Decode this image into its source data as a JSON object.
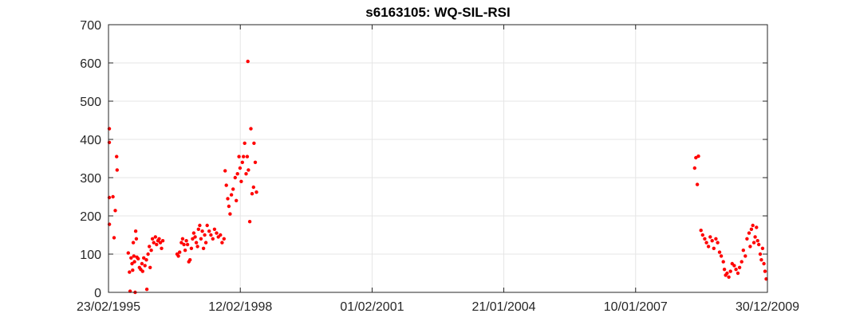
{
  "chart_data": {
    "type": "scatter",
    "title": "s6163105: WQ-SIL-RSI",
    "xlabel": "",
    "ylabel": "",
    "marker_color": "#ff0000",
    "grid": true,
    "x_axis_type": "date",
    "xlim": [
      "1995-02-23",
      "2009-12-30"
    ],
    "ylim": [
      0,
      700
    ],
    "x_ticks": [
      {
        "date": "1995-02-23",
        "label": "23/02/1995"
      },
      {
        "date": "1998-02-12",
        "label": "12/02/1998"
      },
      {
        "date": "2001-02-01",
        "label": "01/02/2001"
      },
      {
        "date": "2004-01-21",
        "label": "21/01/2004"
      },
      {
        "date": "2007-01-10",
        "label": "10/01/2007"
      },
      {
        "date": "2009-12-30",
        "label": "30/12/2009"
      }
    ],
    "y_ticks": [
      0,
      100,
      200,
      300,
      400,
      500,
      600,
      700
    ],
    "points": [
      {
        "x": "1995-02-25",
        "y": 428
      },
      {
        "x": "1995-02-27",
        "y": 392
      },
      {
        "x": "1995-03-01",
        "y": 248
      },
      {
        "x": "1995-03-02",
        "y": 178
      },
      {
        "x": "1995-04-01",
        "y": 250
      },
      {
        "x": "1995-04-10",
        "y": 143
      },
      {
        "x": "1995-04-20",
        "y": 214
      },
      {
        "x": "1995-05-01",
        "y": 355
      },
      {
        "x": "1995-05-05",
        "y": 320
      },
      {
        "x": "1995-08-05",
        "y": 103
      },
      {
        "x": "1995-08-15",
        "y": 53
      },
      {
        "x": "1995-08-20",
        "y": 3
      },
      {
        "x": "1995-08-28",
        "y": 90
      },
      {
        "x": "1995-09-05",
        "y": 75
      },
      {
        "x": "1995-09-10",
        "y": 58
      },
      {
        "x": "1995-09-15",
        "y": 130
      },
      {
        "x": "1995-09-20",
        "y": 95
      },
      {
        "x": "1995-09-25",
        "y": 80
      },
      {
        "x": "1995-09-30",
        "y": 0
      },
      {
        "x": "1995-10-05",
        "y": 160
      },
      {
        "x": "1995-10-10",
        "y": 140
      },
      {
        "x": "1995-10-15",
        "y": 92
      },
      {
        "x": "1995-10-25",
        "y": 88
      },
      {
        "x": "1995-11-05",
        "y": 65
      },
      {
        "x": "1995-11-15",
        "y": 60
      },
      {
        "x": "1995-11-25",
        "y": 75
      },
      {
        "x": "1995-12-01",
        "y": 55
      },
      {
        "x": "1995-12-10",
        "y": 90
      },
      {
        "x": "1995-12-20",
        "y": 70
      },
      {
        "x": "1996-01-01",
        "y": 85
      },
      {
        "x": "1996-01-05",
        "y": 8
      },
      {
        "x": "1996-01-15",
        "y": 100
      },
      {
        "x": "1996-01-25",
        "y": 120
      },
      {
        "x": "1996-02-01",
        "y": 65
      },
      {
        "x": "1996-02-10",
        "y": 110
      },
      {
        "x": "1996-02-20",
        "y": 140
      },
      {
        "x": "1996-03-01",
        "y": 130
      },
      {
        "x": "1996-03-15",
        "y": 145
      },
      {
        "x": "1996-03-25",
        "y": 125
      },
      {
        "x": "1996-04-05",
        "y": 135
      },
      {
        "x": "1996-04-15",
        "y": 140
      },
      {
        "x": "1996-04-25",
        "y": 130
      },
      {
        "x": "1996-05-05",
        "y": 115
      },
      {
        "x": "1996-05-15",
        "y": 135
      },
      {
        "x": "1996-09-10",
        "y": 100
      },
      {
        "x": "1996-09-20",
        "y": 95
      },
      {
        "x": "1996-10-01",
        "y": 105
      },
      {
        "x": "1996-10-15",
        "y": 130
      },
      {
        "x": "1996-10-25",
        "y": 140
      },
      {
        "x": "1996-11-05",
        "y": 125
      },
      {
        "x": "1996-11-15",
        "y": 110
      },
      {
        "x": "1996-11-25",
        "y": 135
      },
      {
        "x": "1996-12-05",
        "y": 125
      },
      {
        "x": "1996-12-15",
        "y": 80
      },
      {
        "x": "1996-12-25",
        "y": 85
      },
      {
        "x": "1997-01-05",
        "y": 115
      },
      {
        "x": "1997-01-15",
        "y": 140
      },
      {
        "x": "1997-01-25",
        "y": 155
      },
      {
        "x": "1997-02-05",
        "y": 145
      },
      {
        "x": "1997-02-15",
        "y": 130
      },
      {
        "x": "1997-02-25",
        "y": 120
      },
      {
        "x": "1997-03-05",
        "y": 165
      },
      {
        "x": "1997-03-15",
        "y": 175
      },
      {
        "x": "1997-03-25",
        "y": 140
      },
      {
        "x": "1997-04-05",
        "y": 160
      },
      {
        "x": "1997-04-15",
        "y": 115
      },
      {
        "x": "1997-04-25",
        "y": 150
      },
      {
        "x": "1997-05-05",
        "y": 130
      },
      {
        "x": "1997-05-15",
        "y": 175
      },
      {
        "x": "1997-06-01",
        "y": 160
      },
      {
        "x": "1997-06-15",
        "y": 150
      },
      {
        "x": "1997-07-01",
        "y": 140
      },
      {
        "x": "1997-07-15",
        "y": 165
      },
      {
        "x": "1997-08-01",
        "y": 155
      },
      {
        "x": "1997-08-15",
        "y": 145
      },
      {
        "x": "1997-09-01",
        "y": 150
      },
      {
        "x": "1997-09-15",
        "y": 130
      },
      {
        "x": "1997-10-01",
        "y": 140
      },
      {
        "x": "1997-10-10",
        "y": 318
      },
      {
        "x": "1997-10-20",
        "y": 280
      },
      {
        "x": "1997-11-01",
        "y": 245
      },
      {
        "x": "1997-11-10",
        "y": 225
      },
      {
        "x": "1997-11-20",
        "y": 205
      },
      {
        "x": "1997-12-01",
        "y": 255
      },
      {
        "x": "1997-12-15",
        "y": 270
      },
      {
        "x": "1998-01-01",
        "y": 300
      },
      {
        "x": "1998-01-10",
        "y": 240
      },
      {
        "x": "1998-01-20",
        "y": 310
      },
      {
        "x": "1998-02-01",
        "y": 355
      },
      {
        "x": "1998-02-10",
        "y": 325
      },
      {
        "x": "1998-02-20",
        "y": 290
      },
      {
        "x": "1998-03-01",
        "y": 340
      },
      {
        "x": "1998-03-10",
        "y": 355
      },
      {
        "x": "1998-03-20",
        "y": 390
      },
      {
        "x": "1998-04-01",
        "y": 310
      },
      {
        "x": "1998-04-10",
        "y": 355
      },
      {
        "x": "1998-04-15",
        "y": 604
      },
      {
        "x": "1998-04-20",
        "y": 320
      },
      {
        "x": "1998-05-01",
        "y": 185
      },
      {
        "x": "1998-05-10",
        "y": 428
      },
      {
        "x": "1998-05-20",
        "y": 258
      },
      {
        "x": "1998-06-01",
        "y": 275
      },
      {
        "x": "1998-06-05",
        "y": 390
      },
      {
        "x": "1998-06-15",
        "y": 340
      },
      {
        "x": "1998-06-25",
        "y": 262
      },
      {
        "x": "2008-05-10",
        "y": 325
      },
      {
        "x": "2008-05-20",
        "y": 352
      },
      {
        "x": "2008-06-01",
        "y": 282
      },
      {
        "x": "2008-06-10",
        "y": 356
      },
      {
        "x": "2008-07-01",
        "y": 162
      },
      {
        "x": "2008-07-15",
        "y": 150
      },
      {
        "x": "2008-08-01",
        "y": 140
      },
      {
        "x": "2008-08-15",
        "y": 130
      },
      {
        "x": "2008-09-01",
        "y": 120
      },
      {
        "x": "2008-09-15",
        "y": 145
      },
      {
        "x": "2008-10-01",
        "y": 135
      },
      {
        "x": "2008-10-15",
        "y": 115
      },
      {
        "x": "2008-11-01",
        "y": 140
      },
      {
        "x": "2008-11-15",
        "y": 130
      },
      {
        "x": "2008-12-01",
        "y": 105
      },
      {
        "x": "2008-12-15",
        "y": 95
      },
      {
        "x": "2009-01-01",
        "y": 80
      },
      {
        "x": "2009-01-10",
        "y": 60
      },
      {
        "x": "2009-01-20",
        "y": 45
      },
      {
        "x": "2009-02-01",
        "y": 50
      },
      {
        "x": "2009-02-15",
        "y": 40
      },
      {
        "x": "2009-03-01",
        "y": 55
      },
      {
        "x": "2009-03-15",
        "y": 75
      },
      {
        "x": "2009-04-01",
        "y": 70
      },
      {
        "x": "2009-04-15",
        "y": 60
      },
      {
        "x": "2009-05-01",
        "y": 50
      },
      {
        "x": "2009-05-15",
        "y": 65
      },
      {
        "x": "2009-06-01",
        "y": 80
      },
      {
        "x": "2009-06-15",
        "y": 110
      },
      {
        "x": "2009-07-01",
        "y": 95
      },
      {
        "x": "2009-07-15",
        "y": 140
      },
      {
        "x": "2009-08-01",
        "y": 155
      },
      {
        "x": "2009-08-10",
        "y": 120
      },
      {
        "x": "2009-08-20",
        "y": 165
      },
      {
        "x": "2009-09-01",
        "y": 175
      },
      {
        "x": "2009-09-10",
        "y": 130
      },
      {
        "x": "2009-09-20",
        "y": 145
      },
      {
        "x": "2009-10-01",
        "y": 170
      },
      {
        "x": "2009-10-10",
        "y": 135
      },
      {
        "x": "2009-10-20",
        "y": 125
      },
      {
        "x": "2009-11-01",
        "y": 100
      },
      {
        "x": "2009-11-10",
        "y": 85
      },
      {
        "x": "2009-11-20",
        "y": 115
      },
      {
        "x": "2009-12-01",
        "y": 75
      },
      {
        "x": "2009-12-10",
        "y": 55
      },
      {
        "x": "2009-12-20",
        "y": 35
      }
    ]
  }
}
